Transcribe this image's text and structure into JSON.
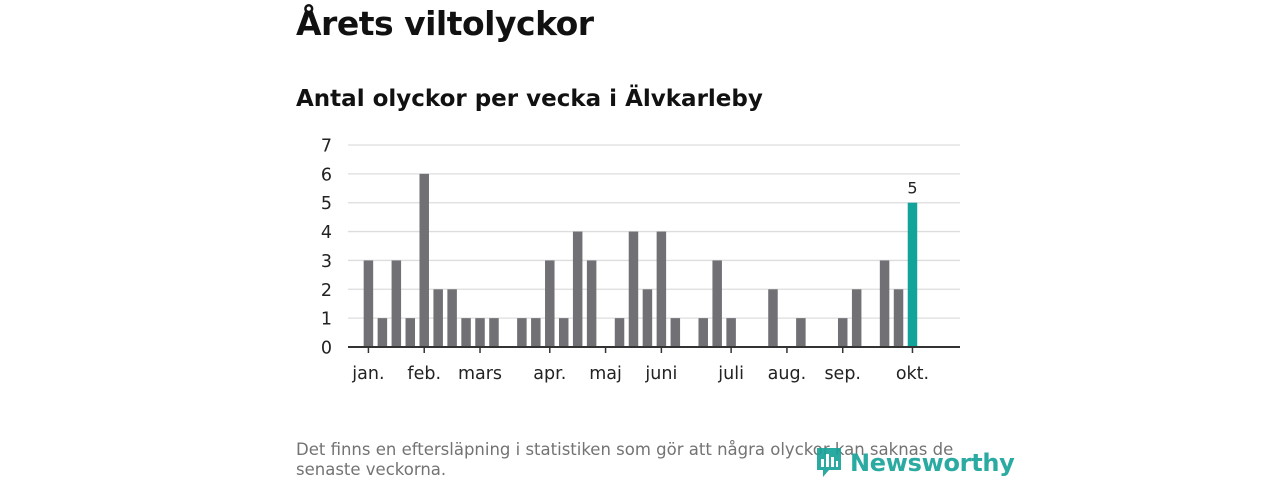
{
  "header": {
    "title": "Årets viltolyckor",
    "subtitle": "Antal olyckor per vecka i Älvkarleby"
  },
  "footnote": "Det finns en eftersläpning i statistiken som gör att några olyckor kan saknas de senaste veckorna.",
  "brand": {
    "name": "Newsworthy",
    "icon": "newsworthy-logo-icon",
    "color": "#1aa39a"
  },
  "colors": {
    "bar": "#717075",
    "highlight": "#12a39a",
    "grid": "#dddddd",
    "axis": "#333333"
  },
  "chart_data": {
    "type": "bar",
    "title": "Antal olyckor per vecka i Älvkarleby",
    "xlabel": "",
    "ylabel": "",
    "ylim": [
      0,
      7
    ],
    "yticks": [
      0,
      1,
      2,
      3,
      4,
      5,
      6,
      7
    ],
    "grid": true,
    "weeks": [
      1,
      2,
      3,
      4,
      5,
      6,
      7,
      8,
      9,
      10,
      11,
      12,
      13,
      14,
      15,
      16,
      17,
      18,
      19,
      20,
      21,
      22,
      23,
      24,
      25,
      26,
      27,
      28,
      29,
      30,
      31,
      32,
      33,
      34,
      35,
      36,
      37,
      38,
      39,
      40,
      41,
      42
    ],
    "values": [
      0,
      3,
      1,
      3,
      1,
      6,
      2,
      2,
      1,
      1,
      1,
      0,
      1,
      1,
      3,
      1,
      4,
      3,
      0,
      1,
      4,
      2,
      4,
      1,
      0,
      1,
      3,
      1,
      0,
      0,
      2,
      0,
      1,
      0,
      0,
      1,
      2,
      0,
      3,
      2,
      5,
      0
    ],
    "highlight_index": 40,
    "highlight_label": "5",
    "month_labels": [
      {
        "label": "jan.",
        "week": 2
      },
      {
        "label": "feb.",
        "week": 6
      },
      {
        "label": "mars",
        "week": 10
      },
      {
        "label": "apr.",
        "week": 15
      },
      {
        "label": "maj",
        "week": 19
      },
      {
        "label": "juni",
        "week": 23
      },
      {
        "label": "juli",
        "week": 28
      },
      {
        "label": "aug.",
        "week": 32
      },
      {
        "label": "sep.",
        "week": 36
      },
      {
        "label": "okt.",
        "week": 41
      }
    ]
  }
}
